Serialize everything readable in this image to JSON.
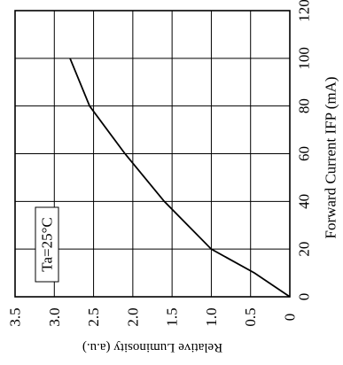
{
  "chart_data": {
    "type": "line",
    "x_axis": {
      "label": "Relative Luminosity (a.u.)",
      "range": [
        0,
        3.5
      ],
      "ticks": [
        3.5,
        3.0,
        2.5,
        2.0,
        1.5,
        1.0,
        0.5,
        0
      ],
      "tick_labels": [
        "3.5",
        "3.0",
        "2.5",
        "2.0",
        "1.5",
        "1.0",
        "0.5",
        "0"
      ],
      "reversed": true
    },
    "y_axis": {
      "label": "Forward Current  IFP (mA)",
      "range": [
        0,
        120
      ],
      "ticks": [
        0,
        20,
        40,
        60,
        80,
        100,
        120
      ],
      "tick_labels": [
        "0",
        "20",
        "40",
        "60",
        "80",
        "100",
        "120"
      ],
      "position": "right"
    },
    "grid": true,
    "annotation": "Ta=25°C",
    "series": [
      {
        "x": [
          0,
          0.45,
          1.0,
          1.6,
          2.1,
          2.55,
          2.8
        ],
        "y": [
          0,
          10,
          20,
          40,
          60,
          80,
          100
        ]
      }
    ]
  }
}
